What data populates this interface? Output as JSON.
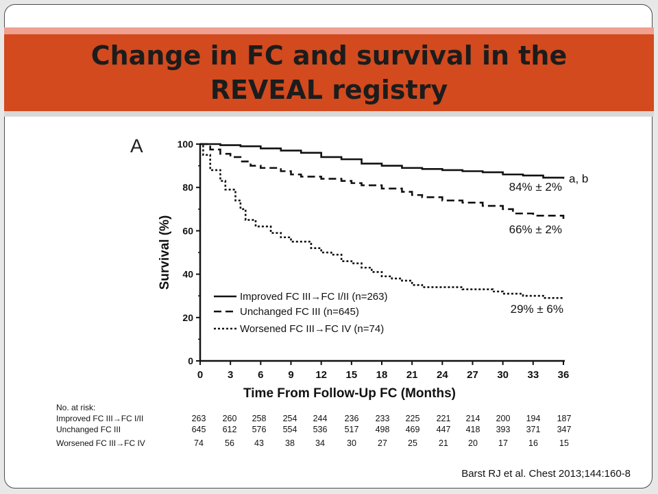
{
  "slide": {
    "title_line1": "Change in FC and survival in the",
    "title_line2": "REVEAL registry",
    "citation": "Barst RJ et al. Chest 2013;144:160-8"
  },
  "chart_data": {
    "type": "line",
    "panel_label": "A",
    "xlabel": "Time From Follow-Up FC (Months)",
    "ylabel": "Survival (%)",
    "xlim": [
      0,
      36
    ],
    "ylim": [
      0,
      100
    ],
    "xticks": [
      0,
      3,
      6,
      9,
      12,
      15,
      18,
      21,
      24,
      27,
      30,
      33,
      36
    ],
    "yticks": [
      0,
      20,
      40,
      60,
      80,
      100
    ],
    "grid": false,
    "legend_position": "lower-left",
    "series": [
      {
        "name": "Improved FC III→FC I/II (n=263)",
        "style": "solid",
        "color": "#111111",
        "end_label": "84% ± 2%",
        "end_note": "a, b",
        "x": [
          0,
          2,
          4,
          6,
          8,
          10,
          12,
          14,
          16,
          18,
          20,
          22,
          24,
          26,
          28,
          30,
          32,
          34,
          36
        ],
        "y": [
          100,
          99.5,
          99,
          98,
          97,
          96,
          94,
          93,
          91,
          90,
          89,
          88.5,
          88,
          87.5,
          87,
          86,
          85.5,
          84.5,
          84
        ]
      },
      {
        "name": "Unchanged FC III (n=645)",
        "style": "dashed",
        "color": "#111111",
        "end_label": "66% ± 2%",
        "x": [
          0,
          1,
          2,
          3,
          4,
          5,
          6,
          8,
          9,
          10,
          12,
          14,
          15,
          16,
          18,
          20,
          21,
          22,
          24,
          26,
          28,
          30,
          31,
          33,
          35,
          36
        ],
        "y": [
          100,
          97.5,
          95.5,
          94,
          92,
          90,
          89,
          87.5,
          86,
          85,
          84,
          83,
          82,
          81,
          79.5,
          78,
          76.5,
          75.5,
          74,
          73,
          71.5,
          70,
          68,
          67,
          67,
          65.5
        ]
      },
      {
        "name": "Worsened FC III→FC IV (n=74)",
        "style": "dotted",
        "color": "#111111",
        "end_label": "29% ± 6%",
        "x": [
          0,
          0.3,
          1,
          2,
          2.5,
          3.5,
          4,
          4.5,
          5.5,
          7,
          8,
          9,
          11,
          12,
          13,
          14,
          15,
          16,
          17,
          18,
          19,
          20,
          21,
          22,
          23,
          25,
          26,
          27,
          29,
          30,
          31,
          32,
          33,
          34,
          36
        ],
        "y": [
          100,
          95,
          88,
          83,
          79,
          74,
          70,
          65,
          62,
          59,
          57,
          55,
          52,
          50,
          49,
          46,
          45,
          43,
          41,
          39,
          38,
          37,
          35,
          34,
          34,
          34,
          33,
          33,
          32,
          31,
          31,
          30,
          30,
          29,
          29
        ]
      }
    ],
    "risk_table": {
      "header": "No. at risk:",
      "rows": [
        {
          "label": "Improved FC III→FC I/II",
          "values": [
            263,
            260,
            258,
            254,
            244,
            236,
            233,
            225,
            221,
            214,
            200,
            194,
            187
          ]
        },
        {
          "label": "Unchanged FC III",
          "values": [
            645,
            612,
            576,
            554,
            536,
            517,
            498,
            469,
            447,
            418,
            393,
            371,
            347
          ]
        },
        {
          "label": "Worsened FC III→FC IV",
          "values": [
            74,
            56,
            43,
            38,
            34,
            30,
            27,
            25,
            21,
            20,
            17,
            16,
            15
          ]
        }
      ]
    }
  }
}
